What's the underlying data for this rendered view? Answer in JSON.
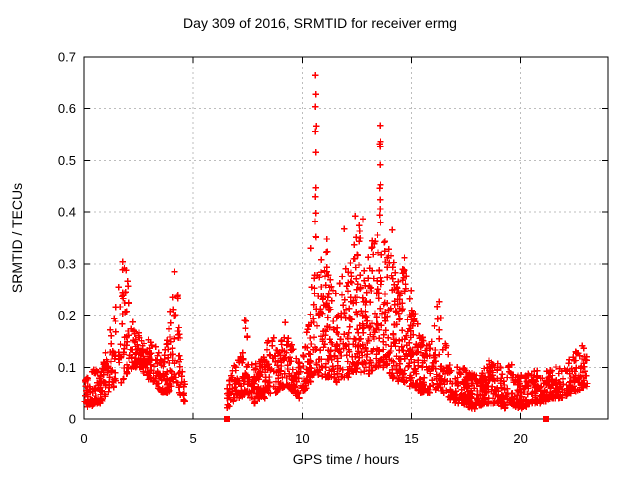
{
  "chart_data": {
    "type": "scatter",
    "title": "Day 309 of 2016, SRMTID for receiver ermg",
    "xlabel": "GPS time / hours",
    "ylabel": "SRMTID / TECUs",
    "xlim": [
      0,
      24
    ],
    "ylim": [
      0,
      0.7
    ],
    "x_ticks": [
      {
        "v": 0,
        "label": "0"
      },
      {
        "v": 5,
        "label": "5"
      },
      {
        "v": 10,
        "label": "10"
      },
      {
        "v": 15,
        "label": "15"
      },
      {
        "v": 20,
        "label": "20"
      }
    ],
    "y_ticks": [
      {
        "v": 0,
        "label": "0"
      },
      {
        "v": 0.1,
        "label": "0.1"
      },
      {
        "v": 0.2,
        "label": "0.2"
      },
      {
        "v": 0.3,
        "label": "0.3"
      },
      {
        "v": 0.4,
        "label": "0.4"
      },
      {
        "v": 0.5,
        "label": "0.5"
      },
      {
        "v": 0.6,
        "label": "0.6"
      },
      {
        "v": 0.7,
        "label": "0.7"
      }
    ],
    "grid": true,
    "legend": "none",
    "marker": "plus",
    "marker_color": "#ff0000",
    "grid_color": "#bdbdbd",
    "axis_color": "#000000",
    "seed": 309,
    "clusters": [
      {
        "range": [
          0.02,
          4.62
        ],
        "count": 430,
        "profile": [
          [
            0.02,
            0.03,
            0.08
          ],
          [
            0.25,
            0.02,
            0.09
          ],
          [
            0.5,
            0.03,
            0.1
          ],
          [
            0.75,
            0.03,
            0.09
          ],
          [
            0.95,
            0.04,
            0.13
          ],
          [
            1.15,
            0.05,
            0.17
          ],
          [
            1.35,
            0.06,
            0.2
          ],
          [
            1.55,
            0.06,
            0.24
          ],
          [
            1.7,
            0.07,
            0.3
          ],
          [
            1.85,
            0.08,
            0.325
          ],
          [
            2.0,
            0.09,
            0.27
          ],
          [
            2.15,
            0.09,
            0.22
          ],
          [
            2.35,
            0.1,
            0.185
          ],
          [
            2.6,
            0.1,
            0.17
          ],
          [
            2.85,
            0.08,
            0.16
          ],
          [
            3.1,
            0.07,
            0.15
          ],
          [
            3.35,
            0.06,
            0.14
          ],
          [
            3.6,
            0.05,
            0.135
          ],
          [
            3.85,
            0.05,
            0.16
          ],
          [
            4.0,
            0.06,
            0.24
          ],
          [
            4.1,
            0.07,
            0.34
          ],
          [
            4.2,
            0.08,
            0.33
          ],
          [
            4.35,
            0.05,
            0.2
          ],
          [
            4.5,
            0.04,
            0.1
          ],
          [
            4.62,
            0.03,
            0.07
          ]
        ]
      },
      {
        "range": [
          6.55,
          10.0
        ],
        "count": 320,
        "profile": [
          [
            6.55,
            0.02,
            0.07
          ],
          [
            6.75,
            0.03,
            0.1
          ],
          [
            7.0,
            0.04,
            0.11
          ],
          [
            7.25,
            0.04,
            0.13
          ],
          [
            7.4,
            0.05,
            0.235
          ],
          [
            7.55,
            0.04,
            0.13
          ],
          [
            7.8,
            0.03,
            0.115
          ],
          [
            8.05,
            0.04,
            0.12
          ],
          [
            8.3,
            0.04,
            0.14
          ],
          [
            8.55,
            0.05,
            0.165
          ],
          [
            8.8,
            0.05,
            0.15
          ],
          [
            9.0,
            0.06,
            0.17
          ],
          [
            9.2,
            0.06,
            0.2
          ],
          [
            9.4,
            0.06,
            0.17
          ],
          [
            9.6,
            0.05,
            0.14
          ],
          [
            9.85,
            0.04,
            0.12
          ],
          [
            10.0,
            0.05,
            0.14
          ]
        ]
      },
      {
        "range": [
          10.0,
          16.5
        ],
        "count": 760,
        "profile": [
          [
            10.0,
            0.05,
            0.14
          ],
          [
            10.2,
            0.06,
            0.18
          ],
          [
            10.35,
            0.07,
            0.25
          ],
          [
            10.6,
            0.09,
            0.36
          ],
          [
            10.85,
            0.08,
            0.31
          ],
          [
            11.1,
            0.08,
            0.35
          ],
          [
            11.35,
            0.08,
            0.28
          ],
          [
            11.6,
            0.07,
            0.24
          ],
          [
            11.85,
            0.08,
            0.33
          ],
          [
            12.1,
            0.08,
            0.3
          ],
          [
            12.4,
            0.09,
            0.34
          ],
          [
            12.65,
            0.09,
            0.385
          ],
          [
            12.9,
            0.08,
            0.31
          ],
          [
            13.15,
            0.09,
            0.33
          ],
          [
            13.4,
            0.1,
            0.36
          ],
          [
            13.6,
            0.1,
            0.38
          ],
          [
            13.85,
            0.1,
            0.35
          ],
          [
            14.1,
            0.08,
            0.33
          ],
          [
            14.4,
            0.07,
            0.27
          ],
          [
            14.65,
            0.07,
            0.31
          ],
          [
            14.9,
            0.06,
            0.27
          ],
          [
            15.15,
            0.06,
            0.21
          ],
          [
            15.45,
            0.05,
            0.17
          ],
          [
            15.75,
            0.05,
            0.145
          ],
          [
            16.0,
            0.05,
            0.18
          ],
          [
            16.2,
            0.06,
            0.265
          ],
          [
            16.4,
            0.05,
            0.18
          ],
          [
            16.5,
            0.05,
            0.16
          ]
        ]
      },
      {
        "range": [
          16.5,
          23.05
        ],
        "count": 640,
        "profile": [
          [
            16.5,
            0.05,
            0.16
          ],
          [
            16.7,
            0.04,
            0.14
          ],
          [
            17.0,
            0.03,
            0.115
          ],
          [
            17.35,
            0.03,
            0.1
          ],
          [
            17.7,
            0.02,
            0.09
          ],
          [
            18.0,
            0.02,
            0.085
          ],
          [
            18.3,
            0.03,
            0.1
          ],
          [
            18.65,
            0.03,
            0.12
          ],
          [
            18.95,
            0.03,
            0.11
          ],
          [
            19.25,
            0.02,
            0.09
          ],
          [
            19.55,
            0.03,
            0.11
          ],
          [
            19.85,
            0.02,
            0.085
          ],
          [
            20.15,
            0.02,
            0.09
          ],
          [
            20.45,
            0.03,
            0.1
          ],
          [
            20.75,
            0.03,
            0.095
          ],
          [
            21.05,
            0.03,
            0.09
          ],
          [
            21.35,
            0.04,
            0.1
          ],
          [
            21.65,
            0.04,
            0.11
          ],
          [
            21.95,
            0.04,
            0.105
          ],
          [
            22.25,
            0.05,
            0.12
          ],
          [
            22.55,
            0.05,
            0.135
          ],
          [
            22.8,
            0.06,
            0.145
          ],
          [
            23.05,
            0.06,
            0.13
          ]
        ]
      }
    ],
    "spike_points": [
      [
        10.6,
        0.665
      ],
      [
        10.62,
        0.628
      ],
      [
        10.6,
        0.604
      ],
      [
        10.63,
        0.566
      ],
      [
        10.6,
        0.556
      ],
      [
        10.62,
        0.516
      ],
      [
        10.61,
        0.447
      ],
      [
        10.59,
        0.43
      ],
      [
        10.62,
        0.398
      ],
      [
        10.58,
        0.382
      ],
      [
        13.56,
        0.567
      ],
      [
        13.58,
        0.536
      ],
      [
        13.55,
        0.531
      ],
      [
        13.57,
        0.527
      ],
      [
        13.56,
        0.492
      ],
      [
        13.58,
        0.453
      ],
      [
        13.54,
        0.446
      ],
      [
        13.57,
        0.424
      ],
      [
        13.56,
        0.406
      ],
      [
        13.55,
        0.394
      ],
      [
        13.58,
        0.38
      ],
      [
        12.42,
        0.392
      ],
      [
        12.78,
        0.386
      ],
      [
        11.92,
        0.368
      ],
      [
        14.12,
        0.366
      ],
      [
        12.6,
        0.375
      ],
      [
        11.12,
        0.348
      ],
      [
        10.38,
        0.33
      ],
      [
        14.68,
        0.312
      ],
      [
        13.2,
        0.345
      ]
    ],
    "square_markers": [
      [
        6.55,
        0
      ],
      [
        21.16,
        0
      ]
    ]
  }
}
